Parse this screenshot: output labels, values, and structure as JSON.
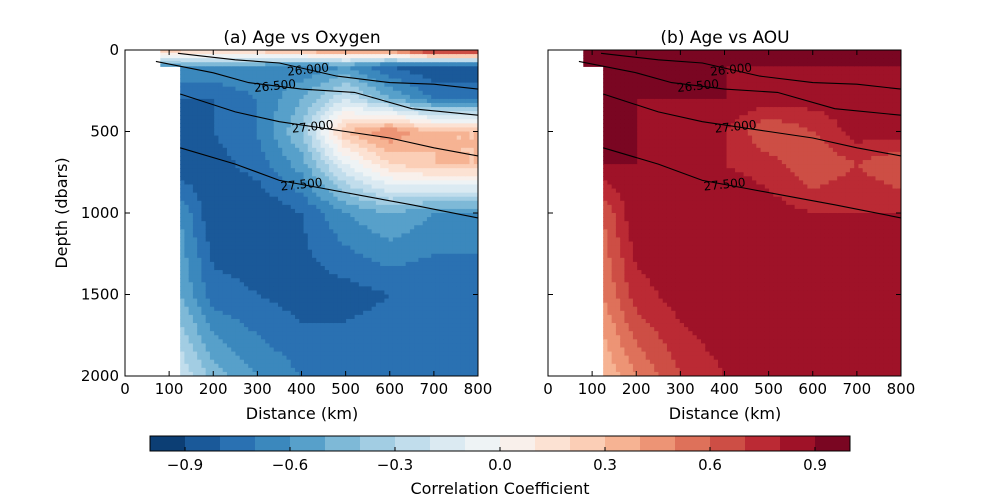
{
  "chart_data": [
    {
      "type": "contour",
      "panel": "a",
      "title": "(a) Age vs Oxygen",
      "xlabel": "Distance (km)",
      "ylabel": "Depth (dbars)",
      "xlim": [
        0,
        800
      ],
      "ylim": [
        2000,
        0
      ],
      "xticks": [
        "0",
        "100",
        "200",
        "300",
        "400",
        "500",
        "600",
        "700",
        "800"
      ],
      "yticks": [
        "0",
        "500",
        "1000",
        "1500",
        "2000"
      ],
      "colormap": "RdBu_r",
      "x": [
        80,
        125,
        200,
        300,
        400,
        500,
        600,
        700,
        800
      ],
      "depth": [
        0,
        100,
        300,
        500,
        700,
        1000,
        1500,
        2000
      ],
      "correlation": [
        [
          null,
          0.3,
          0.3,
          0.3,
          0.4,
          0.5,
          0.5,
          0.9,
          0.9
        ],
        [
          null,
          -0.6,
          -0.6,
          -0.6,
          -0.7,
          -0.6,
          -0.8,
          -0.9,
          -0.9
        ],
        [
          null,
          -0.8,
          -0.8,
          -0.7,
          -0.5,
          -0.2,
          -0.5,
          -0.7,
          -0.7
        ],
        [
          null,
          -0.85,
          -0.8,
          -0.7,
          -0.4,
          0.3,
          0.5,
          0.3,
          0.3
        ],
        [
          null,
          -0.9,
          -0.85,
          -0.75,
          -0.55,
          -0.1,
          0.2,
          0.3,
          0.3
        ],
        [
          null,
          -0.6,
          -0.9,
          -0.9,
          -0.8,
          -0.6,
          -0.5,
          -0.6,
          -0.6
        ],
        [
          null,
          -0.5,
          -0.75,
          -0.8,
          -0.85,
          -0.85,
          -0.8,
          -0.8,
          -0.8
        ],
        [
          null,
          -0.2,
          -0.45,
          -0.6,
          -0.7,
          -0.7,
          -0.7,
          -0.75,
          -0.75
        ]
      ],
      "isopycnals": [
        {
          "label": "26.000",
          "x": [
            120,
            250,
            350,
            480,
            600,
            700,
            800
          ],
          "depth": [
            20,
            60,
            80,
            160,
            200,
            210,
            240
          ]
        },
        {
          "label": "26.500",
          "x": [
            70,
            200,
            280,
            400,
            520,
            650,
            800
          ],
          "depth": [
            70,
            140,
            200,
            240,
            260,
            360,
            400
          ]
        },
        {
          "label": "27.000",
          "x": [
            125,
            250,
            350,
            500,
            600,
            700,
            800
          ],
          "depth": [
            270,
            380,
            440,
            500,
            540,
            600,
            650
          ]
        },
        {
          "label": "27.500",
          "x": [
            125,
            250,
            350,
            450,
            550,
            650,
            800
          ],
          "depth": [
            600,
            700,
            800,
            850,
            900,
            950,
            1030
          ]
        }
      ]
    },
    {
      "type": "contour",
      "panel": "b",
      "title": "(b) Age vs AOU",
      "xlabel": "Distance (km)",
      "ylabel": "",
      "xlim": [
        0,
        800
      ],
      "ylim": [
        2000,
        0
      ],
      "xticks": [
        "0",
        "100",
        "200",
        "300",
        "400",
        "500",
        "600",
        "700",
        "800"
      ],
      "yticks": [],
      "colormap": "RdBu_r",
      "x": [
        80,
        125,
        200,
        300,
        400,
        500,
        600,
        700,
        800
      ],
      "depth": [
        0,
        100,
        300,
        500,
        700,
        1000,
        1500,
        2000
      ],
      "correlation": [
        [
          null,
          0.9,
          0.9,
          0.9,
          0.9,
          0.9,
          0.9,
          0.9,
          0.9
        ],
        [
          null,
          0.9,
          0.9,
          0.9,
          0.9,
          0.9,
          0.9,
          0.9,
          0.9
        ],
        [
          null,
          0.9,
          0.9,
          0.9,
          0.9,
          0.85,
          0.85,
          0.85,
          0.85
        ],
        [
          null,
          0.9,
          0.9,
          0.85,
          0.8,
          0.6,
          0.7,
          0.85,
          0.85
        ],
        [
          null,
          0.9,
          0.9,
          0.85,
          0.8,
          0.75,
          0.6,
          0.7,
          0.6
        ],
        [
          null,
          0.6,
          0.9,
          0.9,
          0.9,
          0.85,
          0.8,
          0.8,
          0.8
        ],
        [
          null,
          0.5,
          0.75,
          0.85,
          0.9,
          0.9,
          0.85,
          0.8,
          0.8
        ],
        [
          null,
          0.3,
          0.5,
          0.7,
          0.8,
          0.8,
          0.8,
          0.8,
          0.8
        ]
      ],
      "isopycnals": [
        {
          "label": "26.000",
          "x": [
            120,
            250,
            350,
            480,
            600,
            700,
            800
          ],
          "depth": [
            20,
            60,
            80,
            160,
            200,
            210,
            240
          ]
        },
        {
          "label": "26.500",
          "x": [
            70,
            200,
            280,
            400,
            520,
            650,
            800
          ],
          "depth": [
            70,
            140,
            200,
            240,
            260,
            360,
            400
          ]
        },
        {
          "label": "27.000",
          "x": [
            125,
            250,
            350,
            500,
            600,
            700,
            800
          ],
          "depth": [
            270,
            380,
            440,
            500,
            540,
            600,
            650
          ]
        },
        {
          "label": "27.500",
          "x": [
            125,
            250,
            350,
            450,
            550,
            650,
            800
          ],
          "depth": [
            600,
            700,
            800,
            850,
            900,
            950,
            1030
          ]
        }
      ]
    }
  ],
  "colorbar": {
    "label": "Correlation Coefficient",
    "range": [
      -1.0,
      1.0
    ],
    "levels": 20,
    "ticks": [
      "−0.9",
      "−0.6",
      "−0.3",
      "0.0",
      "0.3",
      "0.6",
      "0.9"
    ],
    "tick_values": [
      -0.9,
      -0.6,
      -0.3,
      0.0,
      0.3,
      0.6,
      0.9
    ]
  },
  "palette": [
    "#053061",
    "#2166ac",
    "#4393c3",
    "#92c5de",
    "#d1e5f0",
    "#f7f7f7",
    "#fddbc7",
    "#f4a582",
    "#d6604d",
    "#b2182b",
    "#67001f"
  ],
  "masked_color": "#ffffff"
}
